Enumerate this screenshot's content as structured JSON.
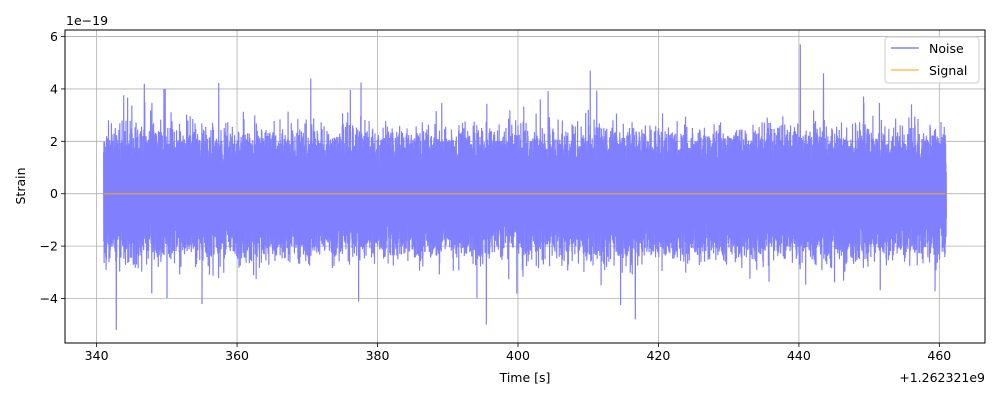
{
  "chart_data": {
    "type": "line",
    "title": "",
    "xlabel": "Time [s]",
    "ylabel": "Strain",
    "x_offset_label": "+1.262321e9",
    "y_scale_label": "1e−19",
    "xlim": [
      335.5,
      466.5
    ],
    "ylim": [
      -5.7,
      6.25
    ],
    "x_ticks": [
      {
        "value": 340,
        "label": "340"
      },
      {
        "value": 360,
        "label": "360"
      },
      {
        "value": 380,
        "label": "380"
      },
      {
        "value": 400,
        "label": "400"
      },
      {
        "value": 420,
        "label": "420"
      },
      {
        "value": 440,
        "label": "440"
      },
      {
        "value": 460,
        "label": "460"
      }
    ],
    "y_ticks": [
      {
        "value": -4,
        "label": "−4"
      },
      {
        "value": -2,
        "label": "−2"
      },
      {
        "value": 0,
        "label": "0"
      },
      {
        "value": 2,
        "label": "2"
      },
      {
        "value": 4,
        "label": "4"
      },
      {
        "value": 6,
        "label": "6"
      }
    ],
    "grid": true,
    "legend_position": "top-right",
    "series": [
      {
        "name": "Noise",
        "color": "#8080ff",
        "x_range": [
          341,
          461
        ],
        "typical_amplitude": 2.3,
        "peaks": [
          {
            "x": 342.8,
            "y": -5.2
          },
          {
            "x": 346.8,
            "y": 4.2
          },
          {
            "x": 370.5,
            "y": 4.4
          },
          {
            "x": 395.5,
            "y": -5.0
          },
          {
            "x": 410.3,
            "y": 4.7
          },
          {
            "x": 416.7,
            "y": -4.8
          },
          {
            "x": 440.2,
            "y": 5.7
          },
          {
            "x": 443.5,
            "y": 4.6
          }
        ]
      },
      {
        "name": "Signal",
        "color": "#ffa500",
        "x_range": [
          341,
          461
        ],
        "y_constant": 0
      }
    ]
  }
}
